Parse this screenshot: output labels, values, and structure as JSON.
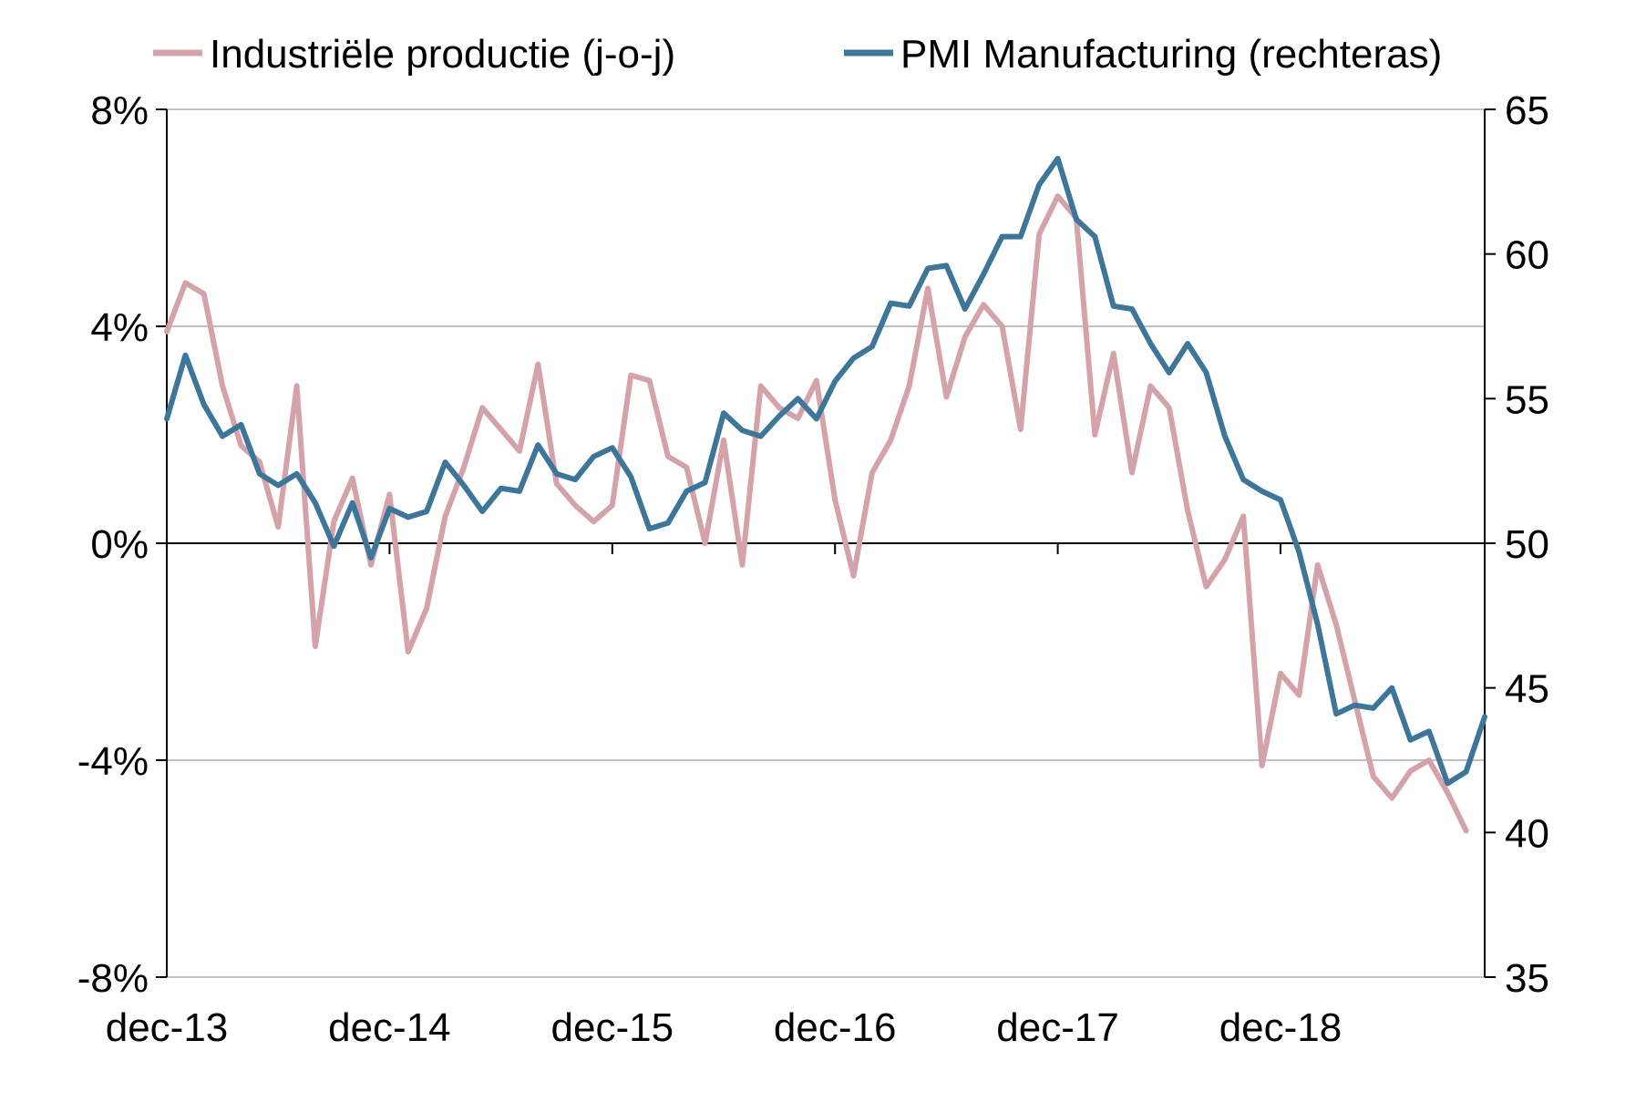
{
  "chart_data": {
    "type": "line",
    "title": "",
    "x_tick_labels": [
      "dec-13",
      "dec-14",
      "dec-15",
      "dec-16",
      "dec-17",
      "dec-18"
    ],
    "left_axis": {
      "ylim": [
        -8,
        8
      ],
      "ticks": [
        -8,
        -4,
        0,
        4,
        8
      ],
      "tick_labels": [
        "-8%",
        "-4%",
        "0%",
        "4%",
        "8%"
      ]
    },
    "right_axis": {
      "ylim": [
        35,
        65
      ],
      "ticks": [
        35,
        40,
        45,
        50,
        55,
        60,
        65
      ],
      "tick_labels": [
        "35",
        "40",
        "45",
        "50",
        "55",
        "60",
        "65"
      ]
    },
    "grid": {
      "horizontal": true,
      "vertical": false
    },
    "legend_position": "top",
    "series": [
      {
        "name": "Industriële productie (j-o-j)",
        "axis": "left",
        "color": "#d4a3aa",
        "start": "dec-13",
        "values": [
          3.9,
          4.8,
          4.6,
          2.9,
          1.8,
          1.5,
          0.3,
          2.9,
          -1.9,
          0.4,
          1.2,
          -0.4,
          0.9,
          -2.0,
          -1.2,
          0.5,
          1.4,
          2.5,
          2.1,
          1.7,
          3.3,
          1.1,
          0.7,
          0.4,
          0.7,
          3.1,
          3.0,
          1.6,
          1.4,
          0.0,
          1.9,
          -0.4,
          2.9,
          2.5,
          2.3,
          3.0,
          0.8,
          -0.6,
          1.3,
          1.9,
          2.9,
          4.7,
          2.7,
          3.8,
          4.4,
          4.0,
          2.1,
          5.7,
          6.4,
          6.0,
          2.0,
          3.5,
          1.3,
          2.9,
          2.5,
          0.6,
          -0.8,
          -0.3,
          0.5,
          -4.1,
          -2.4,
          -2.8,
          -0.4,
          -1.5,
          -2.9,
          -4.3,
          -4.7,
          -4.2,
          -4.0,
          -4.6,
          -5.3
        ]
      },
      {
        "name": "PMI Manufacturing (rechteras)",
        "axis": "right",
        "color": "#3d7699",
        "start": "dec-13",
        "values": [
          54.3,
          56.5,
          54.8,
          53.7,
          54.1,
          52.4,
          52.0,
          52.4,
          51.4,
          49.9,
          51.4,
          49.5,
          51.2,
          50.9,
          51.1,
          52.8,
          52.0,
          51.1,
          51.9,
          51.8,
          53.4,
          52.4,
          52.2,
          53.0,
          53.3,
          52.3,
          50.5,
          50.7,
          51.8,
          52.1,
          54.5,
          53.9,
          53.7,
          54.4,
          55.0,
          54.3,
          55.6,
          56.4,
          56.8,
          58.3,
          58.2,
          59.5,
          59.6,
          58.1,
          59.3,
          60.6,
          60.6,
          62.4,
          63.3,
          61.2,
          60.6,
          58.2,
          58.1,
          56.9,
          55.9,
          56.9,
          55.9,
          53.7,
          52.2,
          51.8,
          51.5,
          49.7,
          47.2,
          44.1,
          44.4,
          44.3,
          45.0,
          43.2,
          43.5,
          41.7,
          42.1,
          44.0
        ]
      }
    ]
  }
}
